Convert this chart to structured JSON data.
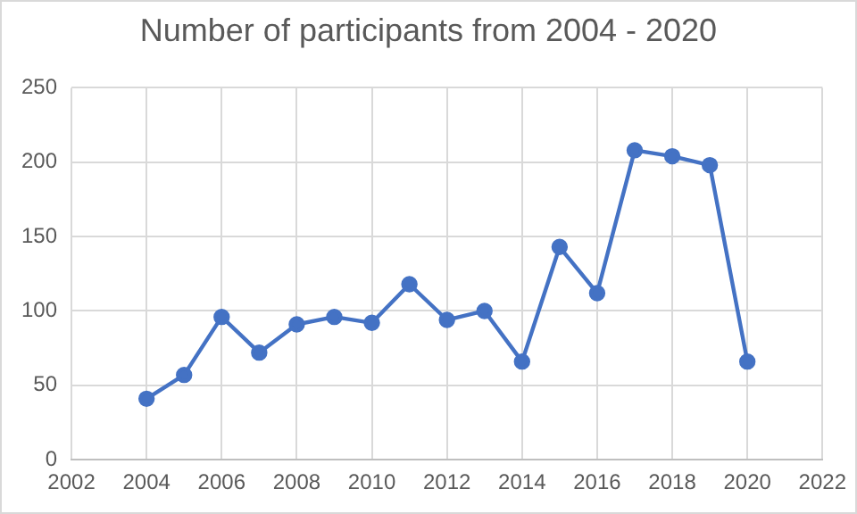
{
  "chart_data": {
    "type": "line",
    "title": "Number of participants from 2004 - 2020",
    "x": [
      2004,
      2005,
      2006,
      2007,
      2008,
      2009,
      2010,
      2011,
      2012,
      2013,
      2014,
      2015,
      2016,
      2017,
      2018,
      2019,
      2020
    ],
    "series": [
      {
        "color": "#4472c4",
        "values": [
          41,
          57,
          96,
          72,
          91,
          96,
          92,
          118,
          94,
          100,
          66,
          143,
          112,
          208,
          204,
          198,
          66
        ]
      }
    ],
    "xlim": [
      2002,
      2022
    ],
    "xticks": [
      2002,
      2004,
      2006,
      2008,
      2010,
      2012,
      2014,
      2016,
      2018,
      2020,
      2022
    ],
    "ylim": [
      0,
      250
    ],
    "yticks": [
      0,
      50,
      100,
      150,
      200,
      250
    ],
    "grid": true,
    "legend": false,
    "marker": "circle",
    "line_style": "solid"
  }
}
